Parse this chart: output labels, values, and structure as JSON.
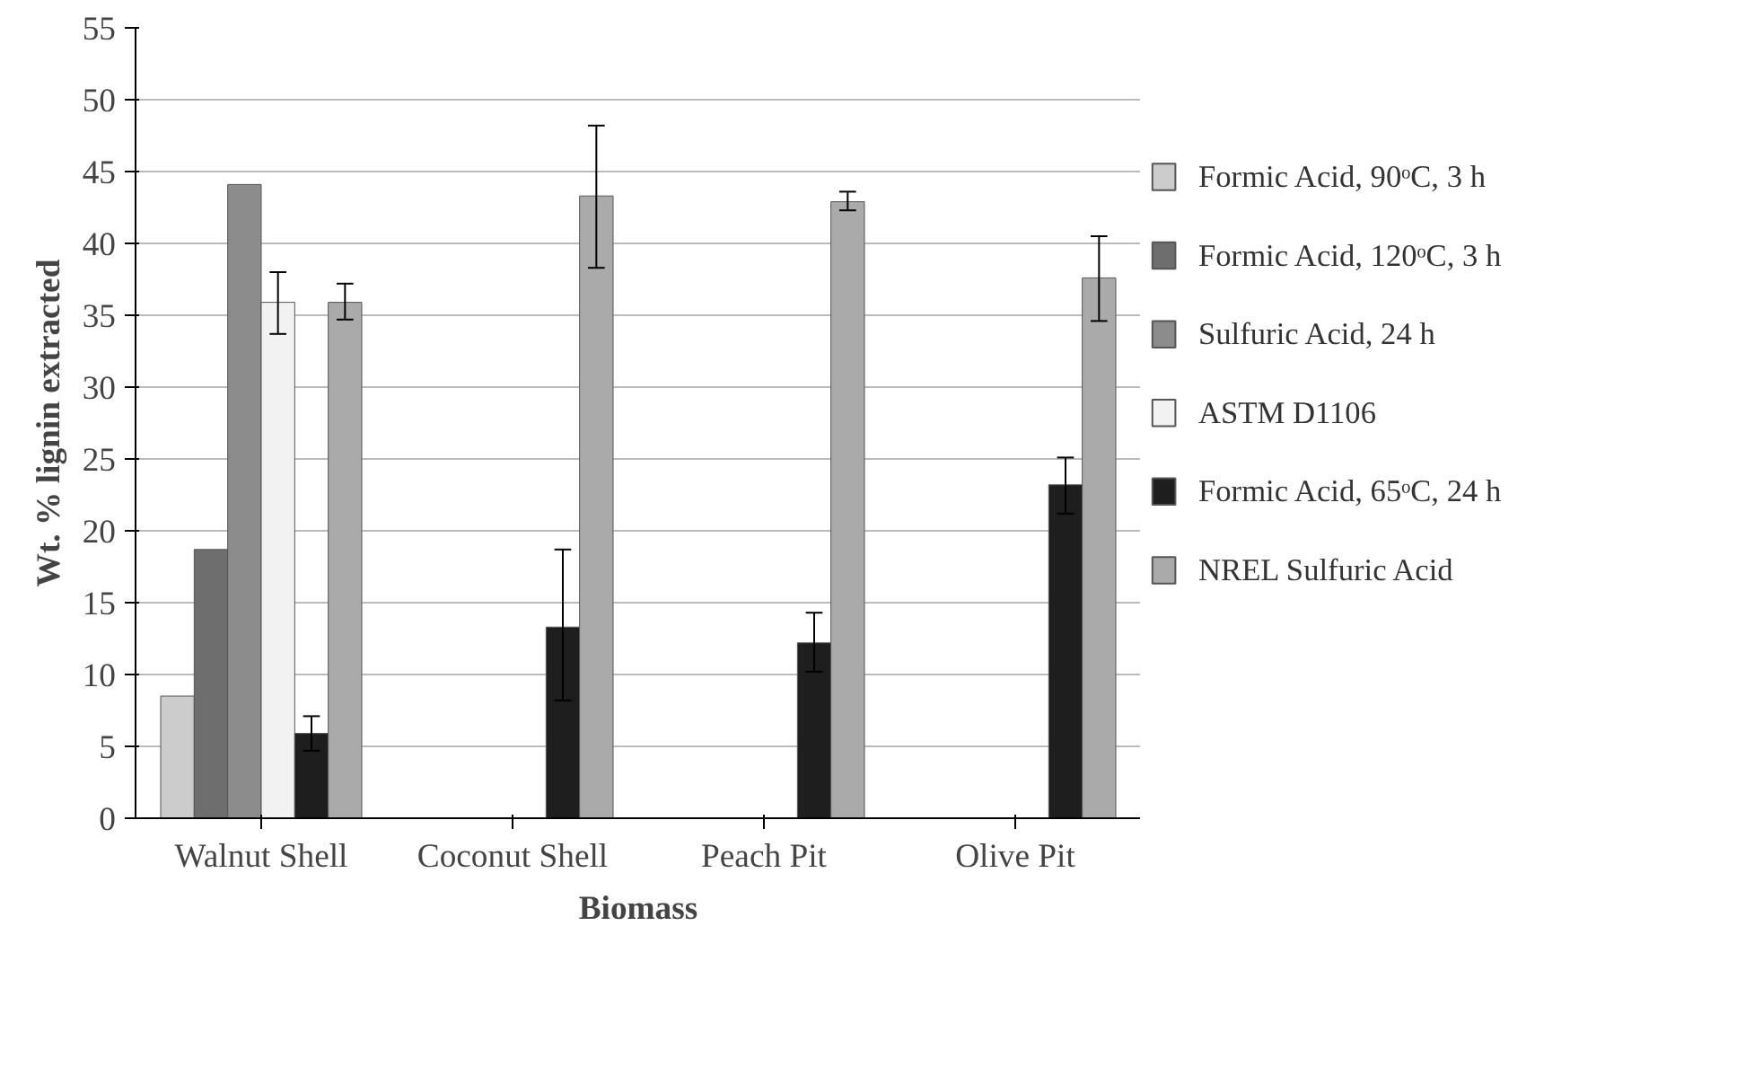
{
  "chart_data": {
    "type": "bar",
    "xlabel": "Biomass",
    "ylabel": "Wt. % lignin extracted",
    "categories": [
      "Walnut Shell",
      "Coconut Shell",
      "Peach Pit",
      "Olive Pit"
    ],
    "series": [
      {
        "name": "Formic Acid, 90ᵒC, 3 h",
        "color": "#cccccc",
        "values": [
          8.5,
          null,
          null,
          null
        ]
      },
      {
        "name": "Formic Acid, 120ᵒC, 3 h",
        "color": "#6e6e6e",
        "values": [
          18.7,
          null,
          null,
          null
        ]
      },
      {
        "name": "Sulfuric Acid, 24 h",
        "color": "#8c8c8c",
        "values": [
          44.1,
          null,
          null,
          null
        ]
      },
      {
        "name": "ASTM D1106",
        "color": "#f2f2f2",
        "values": [
          35.9,
          null,
          null,
          null
        ],
        "errors": [
          [
            33.7,
            38.0
          ],
          null,
          null,
          null
        ]
      },
      {
        "name": "Formic Acid, 65ᵒC, 24 h",
        "color": "#1e1e1e",
        "values": [
          5.9,
          13.3,
          12.2,
          23.2
        ],
        "errors": [
          [
            4.7,
            7.1
          ],
          [
            8.2,
            18.7
          ],
          [
            10.2,
            14.3
          ],
          [
            21.2,
            25.1
          ]
        ]
      },
      {
        "name": "NREL Sulfuric Acid",
        "color": "#aaaaaa",
        "values": [
          35.9,
          43.3,
          42.9,
          37.6
        ],
        "errors": [
          [
            34.7,
            37.2
          ],
          [
            38.3,
            48.2
          ],
          [
            42.3,
            43.6
          ],
          [
            34.6,
            40.5
          ]
        ]
      }
    ],
    "ylim": [
      0,
      55
    ],
    "yticks": [
      0,
      5,
      10,
      15,
      20,
      25,
      30,
      35,
      40,
      45,
      50,
      55
    ],
    "grid": "y",
    "legend": "right"
  }
}
